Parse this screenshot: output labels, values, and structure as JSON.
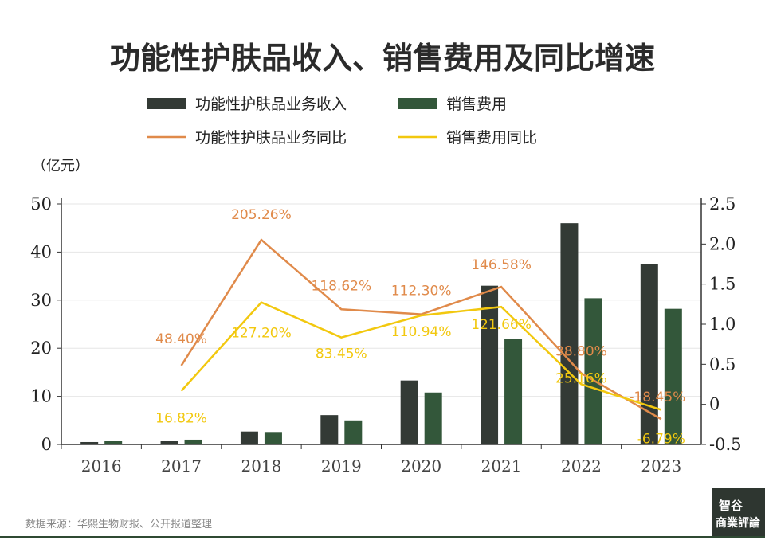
{
  "chart_data": {
    "type": "bar",
    "title": "功能性护肤品收入、销售费用及同比增速",
    "y_left_unit": "（亿元）",
    "categories": [
      "2016",
      "2017",
      "2018",
      "2019",
      "2020",
      "2021",
      "2022",
      "2023"
    ],
    "ylim_left": [
      0,
      50
    ],
    "yticks_left": [
      "0",
      "10",
      "20",
      "30",
      "40",
      "50"
    ],
    "ylim_right": [
      -0.5,
      2.5
    ],
    "yticks_right": [
      "-0.5",
      "0",
      "0.5",
      "1.0",
      "1.5",
      "2.0",
      "2.5"
    ],
    "grid": "horizontal",
    "legend_position": "top",
    "bar_series": [
      {
        "name": "功能性护肤品业务收入",
        "color": "#333a35",
        "values": [
          0.5,
          0.8,
          2.7,
          6.1,
          13.3,
          33.0,
          46.0,
          37.5
        ]
      },
      {
        "name": "销售费用",
        "color": "#33573a",
        "values": [
          0.8,
          1.0,
          2.6,
          5.0,
          10.8,
          22.0,
          30.4,
          28.2
        ]
      }
    ],
    "line_series": [
      {
        "name": "功能性护肤品业务同比",
        "color": "#e08a4a",
        "values": [
          null,
          0.484,
          2.0526,
          1.1862,
          1.123,
          1.4658,
          0.388,
          -0.1845
        ],
        "labels": [
          "",
          "48.40%",
          "205.26%",
          "118.62%",
          "112.30%",
          "146.58%",
          "38.80%",
          "-18.45%"
        ]
      },
      {
        "name": "销售费用同比",
        "color": "#f2c80f",
        "values": [
          null,
          0.1682,
          1.272,
          0.8345,
          1.1094,
          1.2166,
          0.2516,
          -0.0679
        ],
        "labels": [
          "",
          "16.82%",
          "127.20%",
          "83.45%",
          "110.94%",
          "121.66%",
          "25.16%",
          "-6.79%"
        ]
      }
    ]
  },
  "footer": {
    "source": "数据来源：华熙生物财报、公开报道整理",
    "logo_line1": "智谷",
    "logo_line2": "商業評論",
    "line_color": "#2f4a33",
    "logo_bg": "#2e3630"
  }
}
